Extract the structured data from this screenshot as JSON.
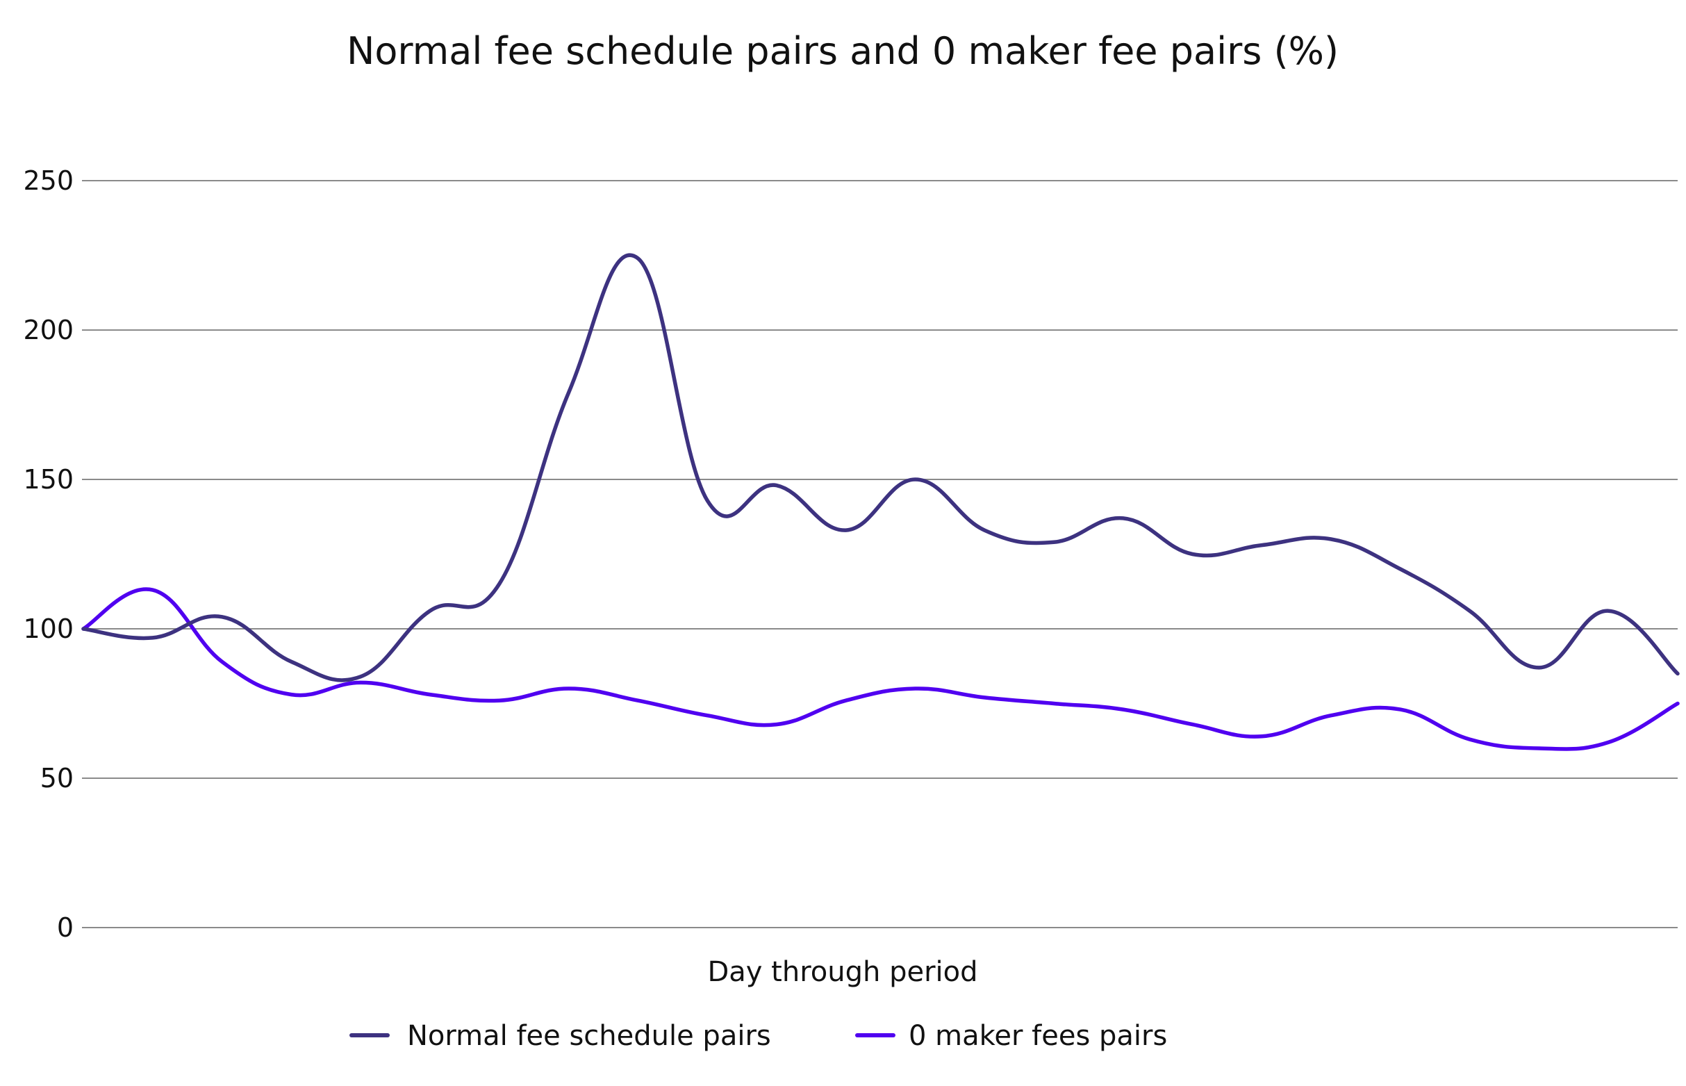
{
  "chart_data": {
    "type": "line",
    "title": "Normal fee schedule pairs and 0 maker fee pairs (%)",
    "xlabel": "Day through period",
    "ylabel": "",
    "ylim": [
      0,
      250
    ],
    "yticks": [
      0,
      50,
      100,
      150,
      200,
      250
    ],
    "ytick_labels": [
      "0",
      "50",
      "100",
      "150",
      "200",
      "250"
    ],
    "grid": true,
    "legend_position": "bottom",
    "x": [
      1,
      2,
      3,
      4,
      5,
      6,
      7,
      8,
      9,
      10,
      11,
      12,
      13,
      14,
      15,
      16,
      17,
      18,
      19,
      20,
      21,
      22,
      23,
      24
    ],
    "series": [
      {
        "name": "Normal fee schedule pairs",
        "color": "#3d3280",
        "values": [
          100,
          97,
          104,
          89,
          84,
          106,
          115,
          179,
          224,
          143,
          148,
          133,
          150,
          133,
          129,
          137,
          125,
          128,
          130,
          120,
          106,
          87,
          106,
          85
        ]
      },
      {
        "name": "0 maker fees pairs",
        "color": "#5000f0",
        "values": [
          100,
          113,
          89,
          78,
          82,
          78,
          76,
          80,
          76,
          71,
          68,
          76,
          80,
          77,
          75,
          73,
          68,
          64,
          71,
          73,
          63,
          60,
          62,
          75
        ]
      }
    ]
  }
}
